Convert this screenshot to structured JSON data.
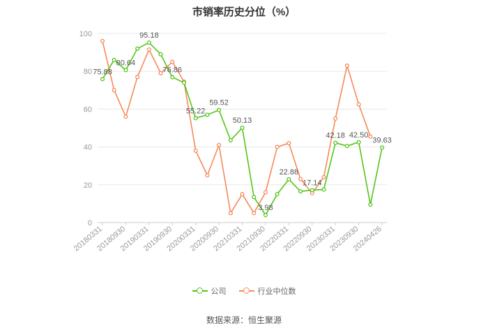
{
  "title": "市销率历史分位（%）",
  "source": "数据来源：恒生聚源",
  "colors": {
    "company": "#52c41a",
    "industry": "#f5895a",
    "grid": "#e8e8e8",
    "axis": "#cccccc"
  },
  "chart_data": {
    "type": "line",
    "title": "市销率历史分位（%）",
    "ylim": [
      0,
      100
    ],
    "yticks": [
      0,
      20,
      40,
      60,
      80,
      100
    ],
    "grid": true,
    "legend_position": "bottom",
    "x_tick_labels": [
      "20180331",
      "20180930",
      "20190331",
      "20190930",
      "20200331",
      "20200930",
      "20210331",
      "20210930",
      "20220331",
      "20220930",
      "20230331",
      "20230930",
      "20240426"
    ],
    "series": [
      {
        "name": "公司",
        "values": [
          75.88,
          86.0,
          80.64,
          92.0,
          95.18,
          89.0,
          76.86,
          74.0,
          55.22,
          57.0,
          59.52,
          43.5,
          50.13,
          13.5,
          3.98,
          15.0,
          22.88,
          16.5,
          17.14,
          17.5,
          42.18,
          40.5,
          42.5,
          9.5,
          39.63
        ],
        "labels": [
          "75.88",
          "",
          "80.64",
          "",
          "95.18",
          "",
          "76.86",
          "",
          "55.22",
          "",
          "59.52",
          "",
          "50.13",
          "",
          "3.98",
          "",
          "22.88",
          "",
          "17.14",
          "",
          "42.18",
          "",
          "42.50",
          "",
          "39.63"
        ]
      },
      {
        "name": "行业中位数",
        "values": [
          96.0,
          70.0,
          56.0,
          77.0,
          91.5,
          79.0,
          85.0,
          74.5,
          38.0,
          25.0,
          41.0,
          5.0,
          15.0,
          5.0,
          16.0,
          40.0,
          42.0,
          23.0,
          15.5,
          24.0,
          55.0,
          83.0,
          62.5,
          45.5
        ]
      }
    ]
  }
}
